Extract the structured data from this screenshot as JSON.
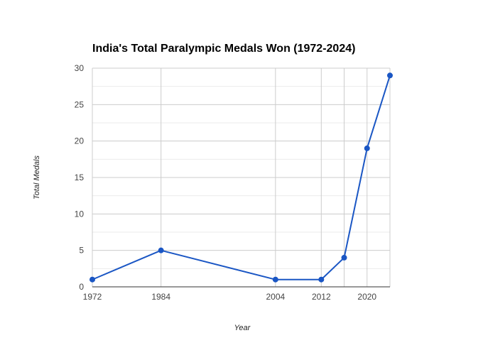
{
  "chart_data": {
    "type": "line",
    "title": "India's Total Paralympic Medals Won (1972-2024)",
    "xlabel": "Year",
    "ylabel": "Total Medals",
    "x": [
      1972,
      1984,
      2004,
      2012,
      2016,
      2020,
      2024
    ],
    "series": [
      {
        "values": [
          1,
          5,
          1,
          1,
          4,
          19,
          29
        ]
      }
    ],
    "xlim": [
      1972,
      2024
    ],
    "ylim": [
      0,
      30
    ],
    "x_ticks": [
      1972,
      1984,
      2004,
      2012,
      2020
    ],
    "y_ticks": [
      0,
      5,
      10,
      15,
      20,
      25,
      30
    ],
    "grid": true,
    "legend": "none",
    "colors": {
      "line": "#1a56c4",
      "marker": "#1a56c4",
      "grid_major": "#cccccc",
      "grid_minor": "#ebebeb",
      "axis": "#333333"
    }
  }
}
